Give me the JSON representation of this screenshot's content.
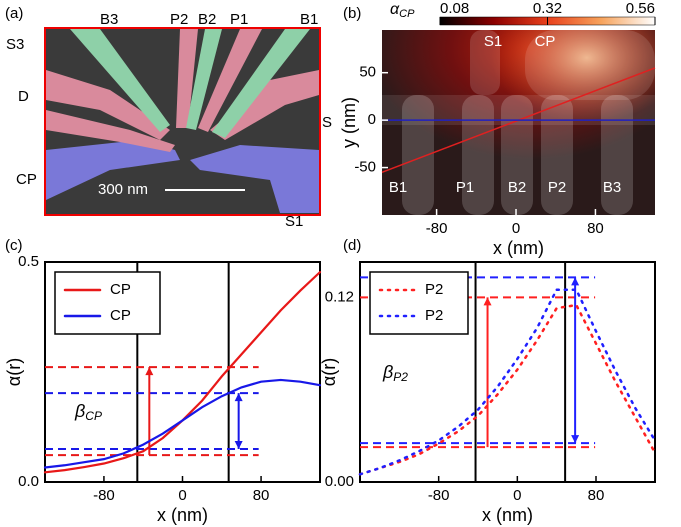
{
  "image": {
    "panel_label": "(a)",
    "labels": [
      "B3",
      "P2",
      "B2",
      "P1",
      "B1",
      "S3",
      "D",
      "S",
      "CP",
      "S1"
    ],
    "scale_bar": "300 nm"
  },
  "chart_data": [
    {
      "type": "heatmap",
      "panel_label": "(b)",
      "colorbar_symbol": "α",
      "colorbar_subscript": "CP",
      "clim": [
        0.08,
        0.56
      ],
      "cticks": [
        0.08,
        0.32,
        0.56
      ],
      "colormap": [
        "#000000",
        "#8b0000",
        "#e8401c",
        "#f7a35c",
        "#ffffff"
      ],
      "xlabel": "x (nm)",
      "ylabel": "y (nm)",
      "xlim": [
        -135,
        140
      ],
      "ylim": [
        -100,
        95
      ],
      "xticks": [
        -80,
        0,
        80
      ],
      "yticks": [
        -50,
        0,
        50
      ],
      "gate_labels": [
        "S1",
        "CP",
        "B1",
        "P1",
        "B2",
        "P2",
        "B3"
      ],
      "lines": [
        {
          "color": "#e02020",
          "x": [
            -135,
            140
          ],
          "y": [
            -55,
            55
          ]
        },
        {
          "color": "#2020c0",
          "x": [
            -135,
            140
          ],
          "y": [
            0,
            0
          ]
        }
      ]
    },
    {
      "type": "line",
      "panel_label": "(c)",
      "xlabel": "x (nm)",
      "ylabel": "α(r)",
      "xlim": [
        -140,
        140
      ],
      "ylim": [
        0,
        0.5
      ],
      "xticks": [
        -80,
        0,
        80
      ],
      "yticks": [
        {
          "value": 0,
          "label": "0.0"
        },
        {
          "value": 0.5,
          "label": "0.5"
        }
      ],
      "legend": "upper left",
      "dash": "solid",
      "x": [
        -140,
        -120,
        -100,
        -80,
        -60,
        -40,
        -20,
        0,
        20,
        40,
        60,
        80,
        100,
        120,
        140
      ],
      "series": [
        {
          "name": "CP",
          "color": "#e81818",
          "values": [
            0.022,
            0.027,
            0.034,
            0.042,
            0.054,
            0.07,
            0.1,
            0.14,
            0.185,
            0.24,
            0.29,
            0.34,
            0.39,
            0.435,
            0.477
          ]
        },
        {
          "name": "CP",
          "color": "#1818e8",
          "values": [
            0.033,
            0.038,
            0.045,
            0.052,
            0.065,
            0.085,
            0.11,
            0.14,
            0.17,
            0.195,
            0.215,
            0.228,
            0.232,
            0.228,
            0.22
          ]
        }
      ],
      "vlines": [
        -46,
        47
      ],
      "hlines": [
        {
          "color": "#e81818",
          "values": [
            0.061,
            0.261
          ]
        },
        {
          "color": "#1818e8",
          "values": [
            0.075,
            0.202
          ]
        }
      ],
      "annotation_symbol": "β",
      "annotation_subscript": "CP"
    },
    {
      "type": "line",
      "panel_label": "(d)",
      "xlabel": "x (nm)",
      "ylabel": "α(r)",
      "xlim": [
        -160,
        140
      ],
      "ylim": [
        0,
        0.143
      ],
      "xticks": [
        -80,
        0,
        80
      ],
      "yticks": [
        {
          "value": 0,
          "label": "0.00"
        },
        {
          "value": 0.12,
          "label": "0.12"
        }
      ],
      "legend": "upper left",
      "dash": "dotted",
      "x": [
        -160,
        -140,
        -120,
        -100,
        -80,
        -60,
        -40,
        -20,
        0,
        20,
        40,
        60,
        80,
        100,
        120,
        140
      ],
      "series": [
        {
          "name": "P2",
          "color": "#ff2020",
          "values": [
            0.005,
            0.009,
            0.013,
            0.018,
            0.025,
            0.033,
            0.043,
            0.057,
            0.073,
            0.092,
            0.113,
            0.115,
            0.09,
            0.065,
            0.042,
            0.019
          ]
        },
        {
          "name": "P2",
          "color": "#2020ff",
          "values": [
            0.005,
            0.009,
            0.014,
            0.02,
            0.027,
            0.036,
            0.047,
            0.062,
            0.08,
            0.1,
            0.125,
            0.125,
            0.098,
            0.072,
            0.048,
            0.027
          ]
        }
      ],
      "vlines": [
        -42.5,
        48.6
      ],
      "hlines": [
        {
          "color": "#ff2020",
          "values": [
            0.0227,
            0.12
          ]
        },
        {
          "color": "#2020ff",
          "values": [
            0.0253,
            0.133
          ]
        }
      ],
      "annotation_symbol": "β",
      "annotation_subscript": "P2"
    }
  ]
}
